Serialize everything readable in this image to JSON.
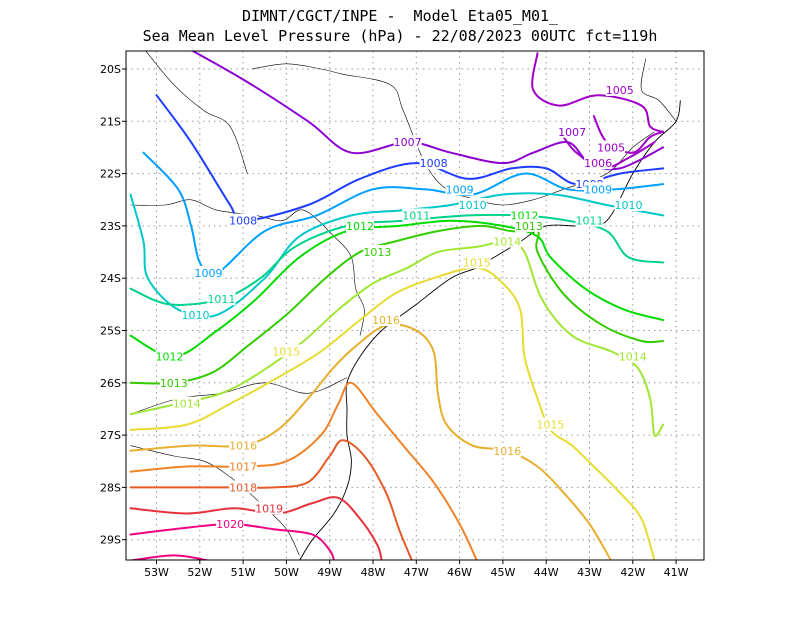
{
  "header": {
    "line1": "DIMNT/CGCT/INPE -  Model Eta05_M01_",
    "line2": "Sea Mean Level Pressure (hPa) - 22/08/2023 00UTC fct=119h"
  },
  "axes": {
    "lon_ticks": [
      "53W",
      "52W",
      "51W",
      "50W",
      "49W",
      "48W",
      "47W",
      "46W",
      "45W",
      "44W",
      "43W",
      "42W",
      "41W"
    ],
    "lat_ticks": [
      "20S",
      "21S",
      "22S",
      "23S",
      "24S",
      "25S",
      "26S",
      "27S",
      "28S",
      "29S"
    ]
  },
  "colors": {
    "1005": "#a000c8",
    "1006": "#a000c8",
    "1007": "#8c00d2",
    "1008": "#1e3cff",
    "1009": "#00a0ff",
    "1010": "#00c8c8",
    "1011": "#00d28c",
    "1012": "#00dc00",
    "1013": "#33cc00",
    "1014": "#a0e632",
    "1015": "#e6dc32",
    "1016": "#e6af2d",
    "1017": "#f08228",
    "1018": "#e65a28",
    "1019": "#e6323c",
    "1020": "#f00082"
  },
  "contour_labels": [
    {
      "text": "1005",
      "lon": -42.3,
      "lat": -20.4
    },
    {
      "text": "1005",
      "lon": -42.5,
      "lat": -21.5
    },
    {
      "text": "1006",
      "lon": -42.8,
      "lat": -21.8
    },
    {
      "text": "1007",
      "lon": -47.2,
      "lat": -21.4
    },
    {
      "text": "1007",
      "lon": -43.4,
      "lat": -21.2
    },
    {
      "text": "1008",
      "lon": -46.6,
      "lat": -21.8
    },
    {
      "text": "1008",
      "lon": -51.0,
      "lat": -22.9
    },
    {
      "text": "1008",
      "lon": -43.0,
      "lat": -22.2
    },
    {
      "text": "1009",
      "lon": -46.0,
      "lat": -22.3
    },
    {
      "text": "1009",
      "lon": -42.8,
      "lat": -22.3
    },
    {
      "text": "1009",
      "lon": -51.8,
      "lat": -23.9
    },
    {
      "text": "1010",
      "lon": -45.7,
      "lat": -22.6
    },
    {
      "text": "1010",
      "lon": -42.1,
      "lat": -22.6
    },
    {
      "text": "1010",
      "lon": -52.1,
      "lat": -24.7
    },
    {
      "text": "1011",
      "lon": -47.0,
      "lat": -22.8
    },
    {
      "text": "1011",
      "lon": -43.0,
      "lat": -22.9
    },
    {
      "text": "1011",
      "lon": -51.5,
      "lat": -24.4
    },
    {
      "text": "1012",
      "lon": -48.3,
      "lat": -23.0
    },
    {
      "text": "1012",
      "lon": -44.5,
      "lat": -22.8
    },
    {
      "text": "1012",
      "lon": -52.7,
      "lat": -25.5
    },
    {
      "text": "1013",
      "lon": -47.9,
      "lat": -23.5
    },
    {
      "text": "1013",
      "lon": -44.4,
      "lat": -23.0
    },
    {
      "text": "1013",
      "lon": -52.6,
      "lat": -26.0
    },
    {
      "text": "1014",
      "lon": -44.9,
      "lat": -23.3
    },
    {
      "text": "1014",
      "lon": -42.0,
      "lat": -25.5
    },
    {
      "text": "1014",
      "lon": -52.3,
      "lat": -26.4
    },
    {
      "text": "1015",
      "lon": -45.6,
      "lat": -23.7
    },
    {
      "text": "1015",
      "lon": -50.0,
      "lat": -25.4
    },
    {
      "text": "1015",
      "lon": -43.9,
      "lat": -26.8
    },
    {
      "text": "1016",
      "lon": -47.7,
      "lat": -24.8
    },
    {
      "text": "1016",
      "lon": -44.9,
      "lat": -27.3
    },
    {
      "text": "1016",
      "lon": -51.0,
      "lat": -27.2
    },
    {
      "text": "1017",
      "lon": -51.0,
      "lat": -27.6
    },
    {
      "text": "1018",
      "lon": -51.0,
      "lat": -28.0
    },
    {
      "text": "1019",
      "lon": -50.4,
      "lat": -28.4
    },
    {
      "text": "1020",
      "lon": -51.3,
      "lat": -28.7
    }
  ],
  "isobars": [
    {
      "level": "1005",
      "pts": [
        [
          -44.2,
          -19.7
        ],
        [
          -44.3,
          -20.4
        ],
        [
          -43.7,
          -20.7
        ],
        [
          -42.8,
          -20.5
        ],
        [
          -41.8,
          -20.7
        ],
        [
          -41.6,
          -21.1
        ],
        [
          -41.3,
          -21.2
        ]
      ]
    },
    {
      "level": "1005",
      "pts": [
        [
          -42.9,
          -20.9
        ],
        [
          -42.6,
          -21.4
        ],
        [
          -42.0,
          -21.6
        ],
        [
          -41.6,
          -21.3
        ],
        [
          -41.3,
          -21.2
        ]
      ]
    },
    {
      "level": "1006",
      "pts": [
        [
          -43.6,
          -21.3
        ],
        [
          -43.3,
          -21.6
        ],
        [
          -42.7,
          -21.9
        ],
        [
          -42.1,
          -21.7
        ],
        [
          -41.5,
          -21.4
        ]
      ]
    },
    {
      "level": "1007",
      "pts": [
        [
          -52.5,
          -19.5
        ],
        [
          -51.0,
          -20.2
        ],
        [
          -49.5,
          -21.0
        ],
        [
          -48.5,
          -21.6
        ],
        [
          -47.2,
          -21.4
        ],
        [
          -46.2,
          -21.6
        ],
        [
          -45.0,
          -21.8
        ],
        [
          -44.3,
          -21.6
        ],
        [
          -43.5,
          -21.4
        ],
        [
          -43.0,
          -21.8
        ],
        [
          -42.3,
          -21.9
        ],
        [
          -41.3,
          -21.5
        ]
      ]
    },
    {
      "level": "1008",
      "pts": [
        [
          -53.0,
          -20.5
        ],
        [
          -52.2,
          -21.4
        ],
        [
          -51.3,
          -22.6
        ],
        [
          -51.0,
          -22.9
        ],
        [
          -49.5,
          -22.6
        ],
        [
          -48.3,
          -22.1
        ],
        [
          -47.0,
          -21.8
        ],
        [
          -45.8,
          -22.1
        ],
        [
          -44.8,
          -21.9
        ],
        [
          -44.0,
          -21.9
        ],
        [
          -43.3,
          -22.2
        ],
        [
          -42.3,
          -22.0
        ],
        [
          -41.3,
          -21.9
        ]
      ]
    },
    {
      "level": "1009",
      "pts": [
        [
          -53.3,
          -21.6
        ],
        [
          -52.5,
          -22.3
        ],
        [
          -52.2,
          -23.0
        ],
        [
          -52.0,
          -23.7
        ],
        [
          -51.6,
          -23.9
        ],
        [
          -50.5,
          -23.1
        ],
        [
          -49.3,
          -22.8
        ],
        [
          -48.0,
          -22.3
        ],
        [
          -46.8,
          -22.3
        ],
        [
          -45.7,
          -22.4
        ],
        [
          -44.5,
          -22.0
        ],
        [
          -43.5,
          -22.3
        ],
        [
          -42.4,
          -22.3
        ],
        [
          -41.3,
          -22.2
        ]
      ]
    },
    {
      "level": "1010",
      "pts": [
        [
          -53.6,
          -22.4
        ],
        [
          -53.3,
          -23.3
        ],
        [
          -53.2,
          -24.0
        ],
        [
          -52.5,
          -24.6
        ],
        [
          -51.6,
          -24.7
        ],
        [
          -50.5,
          -24.0
        ],
        [
          -49.7,
          -23.2
        ],
        [
          -48.5,
          -22.8
        ],
        [
          -47.3,
          -22.7
        ],
        [
          -46.2,
          -22.6
        ],
        [
          -45.0,
          -22.4
        ],
        [
          -43.8,
          -22.4
        ],
        [
          -42.6,
          -22.6
        ],
        [
          -41.3,
          -22.8
        ]
      ]
    },
    {
      "level": "1011",
      "pts": [
        [
          -53.6,
          -24.2
        ],
        [
          -52.7,
          -24.5
        ],
        [
          -51.5,
          -24.4
        ],
        [
          -50.6,
          -24.0
        ],
        [
          -49.8,
          -23.4
        ],
        [
          -48.6,
          -23.0
        ],
        [
          -47.3,
          -22.9
        ],
        [
          -45.8,
          -22.8
        ],
        [
          -44.6,
          -22.8
        ],
        [
          -43.5,
          -22.9
        ],
        [
          -42.6,
          -23.1
        ],
        [
          -42.1,
          -23.6
        ],
        [
          -41.3,
          -23.7
        ]
      ]
    },
    {
      "level": "1012",
      "pts": [
        [
          -53.6,
          -25.1
        ],
        [
          -52.6,
          -25.5
        ],
        [
          -51.6,
          -25.0
        ],
        [
          -50.7,
          -24.4
        ],
        [
          -49.7,
          -23.6
        ],
        [
          -48.6,
          -23.1
        ],
        [
          -47.4,
          -23.0
        ],
        [
          -46.2,
          -22.9
        ],
        [
          -45.0,
          -23.0
        ],
        [
          -44.2,
          -23.2
        ],
        [
          -43.9,
          -23.6
        ],
        [
          -43.1,
          -24.2
        ],
        [
          -42.2,
          -24.6
        ],
        [
          -41.3,
          -24.8
        ]
      ]
    },
    {
      "level": "1013",
      "pts": [
        [
          -53.6,
          -26.0
        ],
        [
          -52.6,
          -26.0
        ],
        [
          -51.7,
          -25.8
        ],
        [
          -50.9,
          -25.3
        ],
        [
          -50.0,
          -24.7
        ],
        [
          -49.1,
          -24.0
        ],
        [
          -48.3,
          -23.5
        ],
        [
          -47.5,
          -23.3
        ],
        [
          -46.5,
          -23.1
        ],
        [
          -45.5,
          -23.0
        ],
        [
          -44.8,
          -23.1
        ],
        [
          -44.2,
          -23.1
        ],
        [
          -44.2,
          -23.5
        ],
        [
          -43.6,
          -24.3
        ],
        [
          -42.7,
          -24.9
        ],
        [
          -41.8,
          -25.2
        ],
        [
          -41.3,
          -25.2
        ]
      ]
    },
    {
      "level": "1014",
      "pts": [
        [
          -53.6,
          -26.6
        ],
        [
          -52.5,
          -26.4
        ],
        [
          -51.5,
          -26.2
        ],
        [
          -50.6,
          -25.8
        ],
        [
          -49.6,
          -25.2
        ],
        [
          -48.8,
          -24.6
        ],
        [
          -48.0,
          -24.1
        ],
        [
          -47.2,
          -23.8
        ],
        [
          -46.5,
          -23.5
        ],
        [
          -45.6,
          -23.4
        ],
        [
          -44.9,
          -23.3
        ],
        [
          -44.5,
          -23.5
        ],
        [
          -44.1,
          -24.4
        ],
        [
          -43.4,
          -25.1
        ],
        [
          -42.5,
          -25.4
        ],
        [
          -41.9,
          -25.7
        ],
        [
          -41.6,
          -26.3
        ],
        [
          -41.5,
          -27.0
        ],
        [
          -41.3,
          -26.8
        ]
      ]
    },
    {
      "level": "1015",
      "pts": [
        [
          -53.6,
          -26.9
        ],
        [
          -52.3,
          -26.8
        ],
        [
          -51.3,
          -26.4
        ],
        [
          -50.2,
          -25.9
        ],
        [
          -49.2,
          -25.4
        ],
        [
          -48.3,
          -24.8
        ],
        [
          -47.5,
          -24.3
        ],
        [
          -46.6,
          -24.0
        ],
        [
          -45.6,
          -23.8
        ],
        [
          -45.0,
          -24.1
        ],
        [
          -44.6,
          -24.6
        ],
        [
          -44.5,
          -25.5
        ],
        [
          -44.2,
          -26.3
        ],
        [
          -43.9,
          -26.9
        ],
        [
          -43.4,
          -27.2
        ],
        [
          -42.9,
          -27.6
        ],
        [
          -42.3,
          -28.1
        ],
        [
          -41.8,
          -28.6
        ],
        [
          -41.5,
          -29.4
        ]
      ]
    },
    {
      "level": "1016",
      "pts": [
        [
          -53.6,
          -27.3
        ],
        [
          -52.2,
          -27.2
        ],
        [
          -51.0,
          -27.2
        ],
        [
          -50.2,
          -26.9
        ],
        [
          -49.5,
          -26.3
        ],
        [
          -48.9,
          -25.7
        ],
        [
          -48.4,
          -25.3
        ],
        [
          -47.7,
          -24.9
        ],
        [
          -47.0,
          -25.0
        ],
        [
          -46.6,
          -25.4
        ],
        [
          -46.5,
          -26.2
        ],
        [
          -46.3,
          -26.8
        ],
        [
          -45.7,
          -27.2
        ],
        [
          -44.9,
          -27.3
        ],
        [
          -44.2,
          -27.6
        ],
        [
          -43.6,
          -28.1
        ],
        [
          -43.0,
          -28.7
        ],
        [
          -42.5,
          -29.4
        ]
      ]
    },
    {
      "level": "1017",
      "pts": [
        [
          -53.6,
          -27.7
        ],
        [
          -52.3,
          -27.6
        ],
        [
          -51.0,
          -27.6
        ],
        [
          -50.0,
          -27.5
        ],
        [
          -49.2,
          -27.0
        ],
        [
          -48.8,
          -26.4
        ],
        [
          -48.5,
          -26.0
        ],
        [
          -47.9,
          -26.6
        ],
        [
          -47.2,
          -27.3
        ],
        [
          -46.6,
          -27.9
        ],
        [
          -46.0,
          -28.7
        ],
        [
          -45.6,
          -29.4
        ]
      ]
    },
    {
      "level": "1018",
      "pts": [
        [
          -53.6,
          -28.0
        ],
        [
          -52.4,
          -28.0
        ],
        [
          -51.3,
          -28.0
        ],
        [
          -50.3,
          -28.0
        ],
        [
          -49.5,
          -27.9
        ],
        [
          -49.0,
          -27.4
        ],
        [
          -48.7,
          -27.1
        ],
        [
          -48.2,
          -27.4
        ],
        [
          -47.7,
          -28.1
        ],
        [
          -47.4,
          -28.8
        ],
        [
          -47.1,
          -29.4
        ]
      ]
    },
    {
      "level": "1019",
      "pts": [
        [
          -53.6,
          -28.4
        ],
        [
          -52.3,
          -28.5
        ],
        [
          -51.2,
          -28.4
        ],
        [
          -50.2,
          -28.5
        ],
        [
          -49.4,
          -28.3
        ],
        [
          -48.8,
          -28.2
        ],
        [
          -48.3,
          -28.6
        ],
        [
          -47.9,
          -29.1
        ],
        [
          -47.8,
          -29.4
        ]
      ]
    },
    {
      "level": "1020",
      "pts": [
        [
          -53.6,
          -28.9
        ],
        [
          -52.6,
          -28.8
        ],
        [
          -51.3,
          -28.7
        ],
        [
          -50.3,
          -28.8
        ],
        [
          -49.4,
          -28.9
        ],
        [
          -49.0,
          -29.2
        ],
        [
          -48.9,
          -29.4
        ]
      ]
    },
    {
      "level": "1020",
      "pts": [
        [
          -53.6,
          -29.4
        ],
        [
          -52.6,
          -29.3
        ],
        [
          -51.8,
          -29.4
        ]
      ]
    }
  ],
  "coastline": [
    [
      -40.9,
      -20.6
    ],
    [
      -41.0,
      -21.0
    ],
    [
      -41.5,
      -21.4
    ],
    [
      -42.0,
      -22.0
    ],
    [
      -42.6,
      -22.9
    ],
    [
      -43.2,
      -23.0
    ],
    [
      -44.0,
      -23.0
    ],
    [
      -44.6,
      -23.3
    ],
    [
      -45.2,
      -23.6
    ],
    [
      -45.6,
      -23.8
    ],
    [
      -46.2,
      -24.0
    ],
    [
      -47.0,
      -24.5
    ],
    [
      -47.8,
      -25.0
    ],
    [
      -48.3,
      -25.5
    ],
    [
      -48.6,
      -26.0
    ],
    [
      -48.6,
      -26.5
    ],
    [
      -48.6,
      -27.0
    ],
    [
      -48.5,
      -27.5
    ],
    [
      -48.6,
      -28.0
    ],
    [
      -48.9,
      -28.5
    ],
    [
      -49.4,
      -29.0
    ],
    [
      -49.7,
      -29.4
    ]
  ],
  "borders": [
    [
      [
        -53.6,
        -22.6
      ],
      [
        -52.8,
        -22.6
      ],
      [
        -52.2,
        -22.5
      ],
      [
        -51.6,
        -22.7
      ],
      [
        -50.7,
        -22.8
      ],
      [
        -50.1,
        -22.9
      ],
      [
        -49.6,
        -22.7
      ],
      [
        -48.9,
        -23.2
      ],
      [
        -48.5,
        -23.6
      ],
      [
        -48.4,
        -24.2
      ],
      [
        -48.2,
        -24.6
      ],
      [
        -48.3,
        -25.1
      ]
    ],
    [
      [
        -53.6,
        -26.6
      ],
      [
        -52.5,
        -26.3
      ],
      [
        -51.5,
        -26.2
      ],
      [
        -50.5,
        -26.0
      ],
      [
        -49.5,
        -26.2
      ],
      [
        -48.6,
        -25.9
      ]
    ],
    [
      [
        -53.6,
        -27.2
      ],
      [
        -52.6,
        -27.4
      ],
      [
        -51.9,
        -27.5
      ],
      [
        -51.3,
        -27.8
      ],
      [
        -50.6,
        -28.3
      ],
      [
        -50.0,
        -28.8
      ],
      [
        -49.7,
        -29.3
      ]
    ],
    [
      [
        -53.3,
        -19.6
      ],
      [
        -52.6,
        -20.3
      ],
      [
        -51.9,
        -20.8
      ],
      [
        -51.3,
        -21.1
      ],
      [
        -50.9,
        -22.0
      ]
    ],
    [
      [
        -50.8,
        -20.0
      ],
      [
        -50.0,
        -19.9
      ],
      [
        -49.2,
        -20.0
      ],
      [
        -48.7,
        -20.1
      ],
      [
        -47.6,
        -20.3
      ],
      [
        -47.3,
        -20.8
      ],
      [
        -46.8,
        -21.8
      ],
      [
        -46.3,
        -22.3
      ],
      [
        -45.6,
        -22.5
      ],
      [
        -45.0,
        -22.6
      ],
      [
        -44.3,
        -22.5
      ],
      [
        -43.6,
        -22.3
      ],
      [
        -42.6,
        -22.0
      ],
      [
        -42.0,
        -21.5
      ],
      [
        -41.5,
        -21.2
      ]
    ],
    [
      [
        -41.0,
        -21.0
      ],
      [
        -41.4,
        -20.6
      ],
      [
        -41.8,
        -20.4
      ],
      [
        -41.7,
        -19.8
      ]
    ]
  ]
}
